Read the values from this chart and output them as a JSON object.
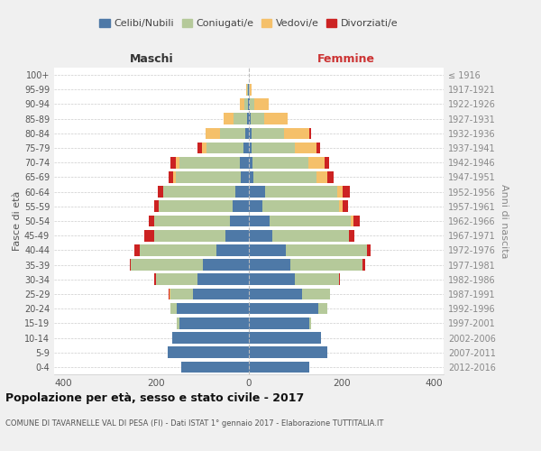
{
  "age_groups": [
    "0-4",
    "5-9",
    "10-14",
    "15-19",
    "20-24",
    "25-29",
    "30-34",
    "35-39",
    "40-44",
    "45-49",
    "50-54",
    "55-59",
    "60-64",
    "65-69",
    "70-74",
    "75-79",
    "80-84",
    "85-89",
    "90-94",
    "95-99",
    "100+"
  ],
  "birth_years": [
    "2012-2016",
    "2007-2011",
    "2002-2006",
    "1997-2001",
    "1992-1996",
    "1987-1991",
    "1982-1986",
    "1977-1981",
    "1972-1976",
    "1967-1971",
    "1962-1966",
    "1957-1961",
    "1952-1956",
    "1947-1951",
    "1942-1946",
    "1937-1941",
    "1932-1936",
    "1927-1931",
    "1922-1926",
    "1917-1921",
    "≤ 1916"
  ],
  "male": {
    "celibi": [
      145,
      175,
      165,
      150,
      155,
      120,
      110,
      100,
      70,
      50,
      40,
      35,
      30,
      18,
      20,
      12,
      8,
      4,
      2,
      1,
      0
    ],
    "coniugati": [
      0,
      0,
      0,
      5,
      15,
      50,
      90,
      155,
      165,
      155,
      165,
      160,
      155,
      140,
      130,
      80,
      55,
      30,
      8,
      2,
      0
    ],
    "vedovi": [
      0,
      0,
      0,
      0,
      0,
      2,
      0,
      0,
      0,
      0,
      0,
      0,
      0,
      5,
      8,
      10,
      30,
      20,
      10,
      2,
      0
    ],
    "divorziati": [
      0,
      0,
      0,
      0,
      0,
      2,
      5,
      2,
      12,
      20,
      10,
      10,
      12,
      10,
      12,
      8,
      0,
      0,
      0,
      0,
      0
    ]
  },
  "female": {
    "nubili": [
      130,
      170,
      155,
      130,
      150,
      115,
      100,
      90,
      80,
      50,
      45,
      30,
      35,
      10,
      8,
      5,
      5,
      4,
      2,
      0,
      0
    ],
    "coniugate": [
      0,
      0,
      0,
      5,
      20,
      60,
      95,
      155,
      175,
      165,
      175,
      165,
      155,
      135,
      120,
      95,
      70,
      30,
      10,
      2,
      0
    ],
    "vedove": [
      0,
      0,
      0,
      0,
      0,
      0,
      0,
      0,
      0,
      0,
      5,
      8,
      12,
      25,
      35,
      45,
      55,
      50,
      30,
      4,
      0
    ],
    "divorziate": [
      0,
      0,
      0,
      0,
      0,
      0,
      2,
      5,
      8,
      12,
      15,
      10,
      15,
      12,
      10,
      8,
      5,
      0,
      0,
      0,
      0
    ]
  },
  "colors": {
    "celibi": "#4e79a7",
    "coniugati": "#b5c99a",
    "vedovi": "#f5c06a",
    "divorziati": "#cc2222"
  },
  "legend_labels": [
    "Celibi/Nubili",
    "Coniugati/e",
    "Vedovi/e",
    "Divorziati/e"
  ],
  "title": "Popolazione per età, sesso e stato civile - 2017",
  "subtitle": "COMUNE DI TAVARNELLE VAL DI PESA (FI) - Dati ISTAT 1° gennaio 2017 - Elaborazione TUTTITALIA.IT",
  "label_maschi": "Maschi",
  "label_femmine": "Femmine",
  "ylabel_left": "Fasce di età",
  "ylabel_right": "Anni di nascita",
  "xlim": 420,
  "bg_color": "#f0f0f0",
  "plot_bg": "#ffffff"
}
